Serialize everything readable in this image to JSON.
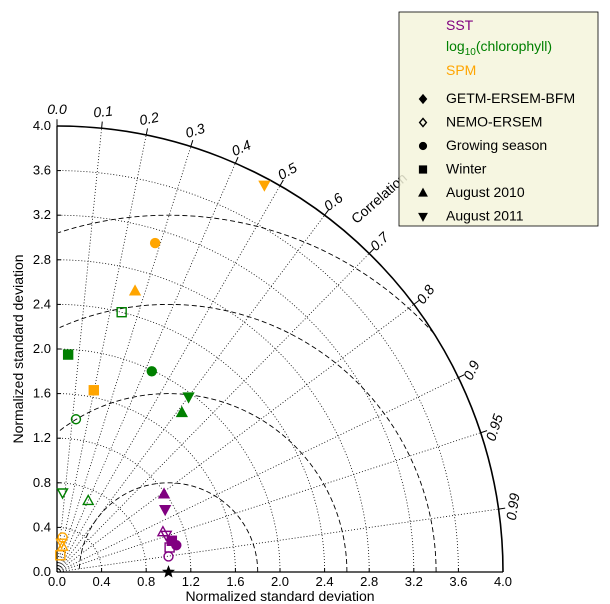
{
  "chart_data": {
    "type": "scatter",
    "subtype": "taylor-diagram",
    "title": "",
    "xlabel": "Normalized standard deviation",
    "ylabel": "Normalized standard deviation",
    "arc_label": "Correlation",
    "xlim": [
      0,
      4.0
    ],
    "ylim": [
      0,
      4.0
    ],
    "x_ticks": [
      "0.0",
      "0.4",
      "0.8",
      "1.2",
      "1.6",
      "2.0",
      "2.4",
      "2.8",
      "3.2",
      "3.6",
      "4.0"
    ],
    "y_ticks": [
      "0.0",
      "0.4",
      "0.8",
      "1.2",
      "1.6",
      "2.0",
      "2.4",
      "2.8",
      "3.2",
      "3.6",
      "4.0"
    ],
    "correlation_ticks": [
      "0.0",
      "0.1",
      "0.2",
      "0.3",
      "0.4",
      "0.5",
      "0.6",
      "0.7",
      "0.8",
      "0.9",
      "0.95",
      "0.99"
    ],
    "std_reference_arcs": [
      0.4,
      0.8,
      1.2,
      1.6,
      2.0,
      2.4,
      2.8,
      3.2,
      3.6
    ],
    "rmsd_arcs": [
      0.8,
      1.6,
      2.4,
      3.2
    ],
    "reference_point": [
      1.0,
      0.0
    ],
    "grid": true,
    "legend_position": "top-right",
    "colors": {
      "SST": "#800080",
      "chlorophyll": "#008000",
      "SPM": "#FFA500"
    },
    "legend": {
      "variables": [
        {
          "label": "SST",
          "color": "#800080"
        },
        {
          "label_main": "log",
          "label_sub": "10",
          "label_rest": "(chlorophyll)",
          "color": "#008000"
        },
        {
          "label": "SPM",
          "color": "#FFA500"
        }
      ],
      "markers": [
        {
          "label": "GETM-ERSEM-BFM",
          "shape": "diamond",
          "fill": true
        },
        {
          "label": "NEMO-ERSEM",
          "shape": "diamond",
          "fill": false
        },
        {
          "label": "Growing season",
          "shape": "circle",
          "fill": true
        },
        {
          "label": "Winter",
          "shape": "square",
          "fill": true
        },
        {
          "label": "August 2010",
          "shape": "triangle-up",
          "fill": true
        },
        {
          "label": "August 2011",
          "shape": "triangle-down",
          "fill": true
        }
      ]
    },
    "series": [
      {
        "name": "SST",
        "color": "#800080",
        "points": [
          {
            "x": 1.07,
            "y": 0.24,
            "shape": "circle",
            "fill": true
          },
          {
            "x": 1.0,
            "y": 0.14,
            "shape": "circle",
            "fill": false
          },
          {
            "x": 1.01,
            "y": 0.22,
            "shape": "square",
            "fill": false
          },
          {
            "x": 1.03,
            "y": 0.28,
            "shape": "square",
            "fill": true
          },
          {
            "x": 0.96,
            "y": 0.7,
            "shape": "triangle-up",
            "fill": true
          },
          {
            "x": 0.95,
            "y": 0.36,
            "shape": "triangle-up",
            "fill": false
          },
          {
            "x": 0.97,
            "y": 0.56,
            "shape": "triangle-down",
            "fill": true
          },
          {
            "x": 0.98,
            "y": 0.33,
            "shape": "triangle-down",
            "fill": false
          }
        ]
      },
      {
        "name": "log10(chlorophyll)",
        "color": "#008000",
        "points": [
          {
            "x": 0.85,
            "y": 1.8,
            "shape": "circle",
            "fill": true
          },
          {
            "x": 0.17,
            "y": 1.37,
            "shape": "circle",
            "fill": false
          },
          {
            "x": 0.1,
            "y": 1.95,
            "shape": "square",
            "fill": true
          },
          {
            "x": 0.58,
            "y": 2.33,
            "shape": "square",
            "fill": false
          },
          {
            "x": 1.12,
            "y": 1.43,
            "shape": "triangle-up",
            "fill": true
          },
          {
            "x": 0.28,
            "y": 0.64,
            "shape": "triangle-up",
            "fill": false
          },
          {
            "x": 1.18,
            "y": 1.57,
            "shape": "triangle-down",
            "fill": true
          },
          {
            "x": 0.05,
            "y": 0.71,
            "shape": "triangle-down",
            "fill": false
          }
        ]
      },
      {
        "name": "SPM",
        "color": "#FFA500",
        "points": [
          {
            "x": 0.88,
            "y": 2.95,
            "shape": "circle",
            "fill": true
          },
          {
            "x": 0.05,
            "y": 0.31,
            "shape": "circle",
            "fill": false
          },
          {
            "x": 0.33,
            "y": 1.63,
            "shape": "square",
            "fill": true
          },
          {
            "x": 0.03,
            "y": 0.15,
            "shape": "square",
            "fill": false
          },
          {
            "x": 0.7,
            "y": 2.52,
            "shape": "triangle-up",
            "fill": true
          },
          {
            "x": 0.05,
            "y": 0.23,
            "shape": "triangle-up",
            "fill": false
          },
          {
            "x": 1.86,
            "y": 3.47,
            "shape": "triangle-down",
            "fill": true
          },
          {
            "x": 0.04,
            "y": 0.26,
            "shape": "triangle-down",
            "fill": false
          }
        ]
      }
    ]
  }
}
